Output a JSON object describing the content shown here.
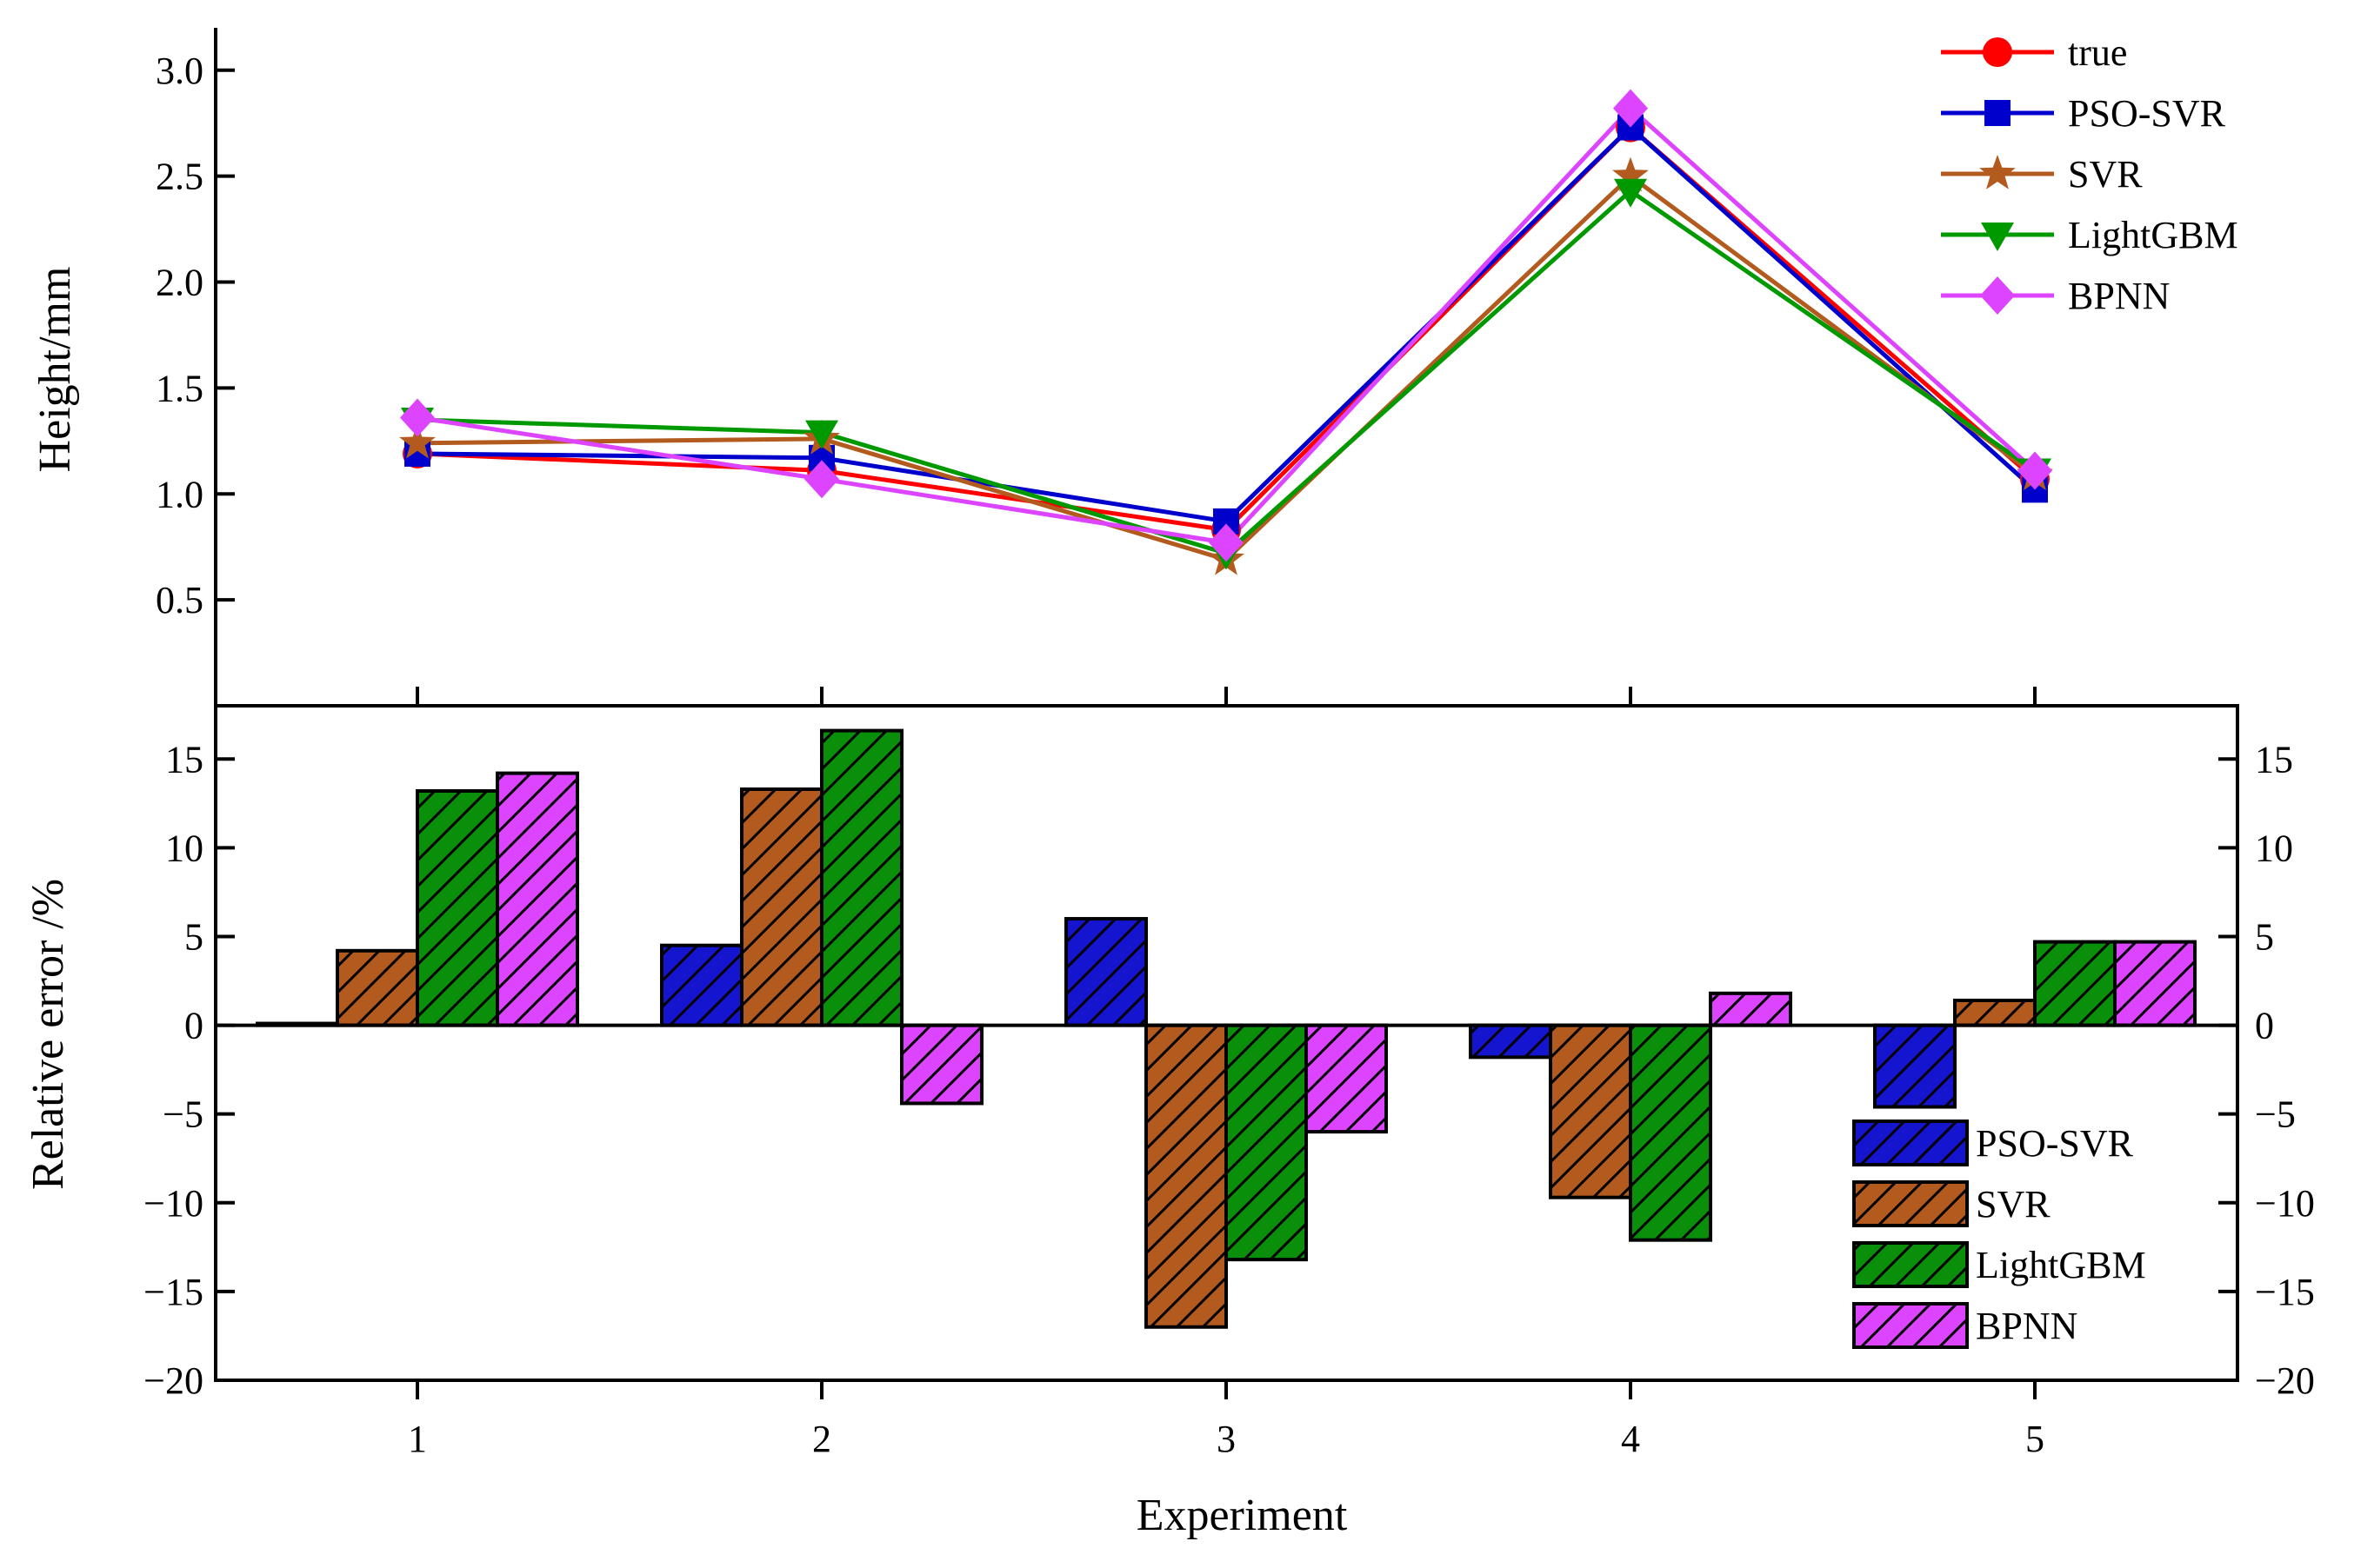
{
  "chart_data": [
    {
      "type": "line",
      "xlabel": "Experiment",
      "ylabel": "Height/mm",
      "ylim": [
        0,
        3.2
      ],
      "yticks": [
        "0.5",
        "1.0",
        "1.5",
        "2.0",
        "2.5",
        "3.0"
      ],
      "categories": [
        "1",
        "2",
        "3",
        "4",
        "5"
      ],
      "series": [
        {
          "name": "true",
          "marker": "circle",
          "color": "#ff0000",
          "values": [
            1.19,
            1.11,
            0.83,
            2.73,
            1.07
          ]
        },
        {
          "name": "PSO-SVR",
          "marker": "square",
          "color": "#0000cc",
          "values": [
            1.19,
            1.17,
            0.87,
            2.73,
            1.02
          ]
        },
        {
          "name": "SVR",
          "marker": "star",
          "color": "#b35a1f",
          "values": [
            1.24,
            1.26,
            0.69,
            2.5,
            1.09
          ]
        },
        {
          "name": "LightGBM",
          "marker": "triangle-down",
          "color": "#009900",
          "values": [
            1.35,
            1.29,
            0.72,
            2.43,
            1.11
          ]
        },
        {
          "name": "BPNN",
          "marker": "diamond",
          "color": "#dd44ff",
          "values": [
            1.36,
            1.07,
            0.77,
            2.82,
            1.11
          ]
        }
      ],
      "legend_position": "top-right"
    },
    {
      "type": "bar",
      "xlabel": "Experiment",
      "ylabel": "Relative error /%",
      "ylim": [
        -20,
        18
      ],
      "yticks": [
        "-20",
        "-15",
        "-10",
        "-5",
        "0",
        "5",
        "10",
        "15"
      ],
      "categories": [
        "1",
        "2",
        "3",
        "4",
        "5"
      ],
      "series": [
        {
          "name": "PSO-SVR",
          "color": "#1515d0",
          "values": [
            0.1,
            4.5,
            6.0,
            -1.8,
            -4.6
          ]
        },
        {
          "name": "SVR",
          "color": "#b35a1f",
          "values": [
            4.2,
            13.3,
            -17.0,
            -9.7,
            1.4
          ]
        },
        {
          "name": "LightGBM",
          "color": "#0a8f0a",
          "values": [
            13.2,
            16.6,
            -13.2,
            -12.1,
            4.7
          ]
        },
        {
          "name": "BPNN",
          "color": "#dd44ff",
          "values": [
            14.2,
            -4.4,
            -6.0,
            1.8,
            4.7
          ]
        }
      ],
      "legend_position": "bottom-right",
      "pattern": "diagonal-hatch"
    }
  ]
}
